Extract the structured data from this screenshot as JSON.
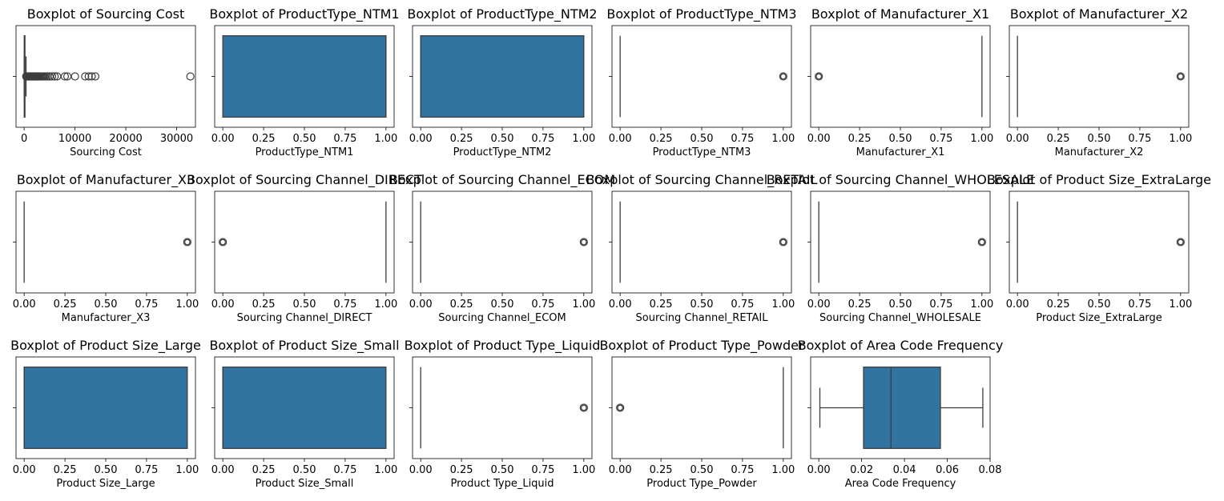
{
  "chart_data": [
    {
      "type": "boxplot",
      "title": "Boxplot of Sourcing Cost",
      "xlabel": "Sourcing Cost",
      "xlim": [
        -1600,
        33700
      ],
      "xticks": [
        0,
        10000,
        20000,
        30000
      ],
      "xtick_labels": [
        "0",
        "10000",
        "20000",
        "30000"
      ],
      "box": {
        "q1": 20,
        "median": 60,
        "q3": 160,
        "whisker_low": 0,
        "whisker_high": 370
      },
      "box_color": "",
      "outliers": [
        400,
        500,
        600,
        700,
        800,
        900,
        1000,
        1100,
        1200,
        1300,
        1400,
        1500,
        1600,
        1700,
        1800,
        1900,
        2000,
        2100,
        2200,
        2300,
        2400,
        2500,
        2600,
        2700,
        2800,
        2900,
        3000,
        3200,
        3400,
        3600,
        3800,
        4000,
        4300,
        4600,
        5000,
        5500,
        6000,
        6500,
        8000,
        8500,
        10000,
        12000,
        12700,
        13300,
        14000,
        32700
      ]
    },
    {
      "type": "boxplot",
      "title": "Boxplot of ProductType_NTM1",
      "xlabel": "ProductType_NTM1",
      "xlim": [
        -0.05,
        1.05
      ],
      "xticks": [
        0,
        0.25,
        0.5,
        0.75,
        1
      ],
      "xtick_labels": [
        "0.00",
        "0.25",
        "0.50",
        "0.75",
        "1.00"
      ],
      "box": {
        "q1": 0,
        "median": 1,
        "q3": 1,
        "whisker_low": 0,
        "whisker_high": 1
      },
      "box_color": "#3274a1",
      "outliers": []
    },
    {
      "type": "boxplot",
      "title": "Boxplot of ProductType_NTM2",
      "xlabel": "ProductType_NTM2",
      "xlim": [
        -0.05,
        1.05
      ],
      "xticks": [
        0,
        0.25,
        0.5,
        0.75,
        1
      ],
      "xtick_labels": [
        "0.00",
        "0.25",
        "0.50",
        "0.75",
        "1.00"
      ],
      "box": {
        "q1": 0,
        "median": 0,
        "q3": 1,
        "whisker_low": 0,
        "whisker_high": 1
      },
      "box_color": "#3274a1",
      "outliers": []
    },
    {
      "type": "boxplot",
      "title": "Boxplot of ProductType_NTM3",
      "xlabel": "ProductType_NTM3",
      "xlim": [
        -0.05,
        1.05
      ],
      "xticks": [
        0,
        0.25,
        0.5,
        0.75,
        1
      ],
      "xtick_labels": [
        "0.00",
        "0.25",
        "0.50",
        "0.75",
        "1.00"
      ],
      "box": {
        "q1": 0,
        "median": 0,
        "q3": 0,
        "whisker_low": 0,
        "whisker_high": 0
      },
      "box_color": "#3274a1",
      "outliers": [
        1
      ]
    },
    {
      "type": "boxplot",
      "title": "Boxplot of Manufacturer_X1",
      "xlabel": "Manufacturer_X1",
      "xlim": [
        -0.05,
        1.05
      ],
      "xticks": [
        0,
        0.25,
        0.5,
        0.75,
        1
      ],
      "xtick_labels": [
        "0.00",
        "0.25",
        "0.50",
        "0.75",
        "1.00"
      ],
      "box": {
        "q1": 1,
        "median": 1,
        "q3": 1,
        "whisker_low": 1,
        "whisker_high": 1
      },
      "box_color": "#3274a1",
      "outliers": [
        0
      ]
    },
    {
      "type": "boxplot",
      "title": "Boxplot of Manufacturer_X2",
      "xlabel": "Manufacturer_X2",
      "xlim": [
        -0.05,
        1.05
      ],
      "xticks": [
        0,
        0.25,
        0.5,
        0.75,
        1
      ],
      "xtick_labels": [
        "0.00",
        "0.25",
        "0.50",
        "0.75",
        "1.00"
      ],
      "box": {
        "q1": 0,
        "median": 0,
        "q3": 0,
        "whisker_low": 0,
        "whisker_high": 0
      },
      "box_color": "#3274a1",
      "outliers": [
        1
      ]
    },
    {
      "type": "boxplot",
      "title": "Boxplot of Manufacturer_X3",
      "xlabel": "Manufacturer_X3",
      "xlim": [
        -0.05,
        1.05
      ],
      "xticks": [
        0,
        0.25,
        0.5,
        0.75,
        1
      ],
      "xtick_labels": [
        "0.00",
        "0.25",
        "0.50",
        "0.75",
        "1.00"
      ],
      "box": {
        "q1": 0,
        "median": 0,
        "q3": 0,
        "whisker_low": 0,
        "whisker_high": 0
      },
      "box_color": "#3274a1",
      "outliers": [
        1
      ]
    },
    {
      "type": "boxplot",
      "title": "Boxplot of Sourcing Channel_DIRECT",
      "xlabel": "Sourcing Channel_DIRECT",
      "xlim": [
        -0.05,
        1.05
      ],
      "xticks": [
        0,
        0.25,
        0.5,
        0.75,
        1
      ],
      "xtick_labels": [
        "0.00",
        "0.25",
        "0.50",
        "0.75",
        "1.00"
      ],
      "box": {
        "q1": 1,
        "median": 1,
        "q3": 1,
        "whisker_low": 1,
        "whisker_high": 1
      },
      "box_color": "#3274a1",
      "outliers": [
        0
      ]
    },
    {
      "type": "boxplot",
      "title": "Boxplot of Sourcing Channel_ECOM",
      "xlabel": "Sourcing Channel_ECOM",
      "xlim": [
        -0.05,
        1.05
      ],
      "xticks": [
        0,
        0.25,
        0.5,
        0.75,
        1
      ],
      "xtick_labels": [
        "0.00",
        "0.25",
        "0.50",
        "0.75",
        "1.00"
      ],
      "box": {
        "q1": 0,
        "median": 0,
        "q3": 0,
        "whisker_low": 0,
        "whisker_high": 0
      },
      "box_color": "#3274a1",
      "outliers": [
        1
      ]
    },
    {
      "type": "boxplot",
      "title": "Boxplot of Sourcing Channel_RETAIL",
      "xlabel": "Sourcing Channel_RETAIL",
      "xlim": [
        -0.05,
        1.05
      ],
      "xticks": [
        0,
        0.25,
        0.5,
        0.75,
        1
      ],
      "xtick_labels": [
        "0.00",
        "0.25",
        "0.50",
        "0.75",
        "1.00"
      ],
      "box": {
        "q1": 0,
        "median": 0,
        "q3": 0,
        "whisker_low": 0,
        "whisker_high": 0
      },
      "box_color": "#3274a1",
      "outliers": [
        1
      ]
    },
    {
      "type": "boxplot",
      "title": "Boxplot of Sourcing Channel_WHOLESALE",
      "xlabel": "Sourcing Channel_WHOLESALE",
      "xlim": [
        -0.05,
        1.05
      ],
      "xticks": [
        0,
        0.25,
        0.5,
        0.75,
        1
      ],
      "xtick_labels": [
        "0.00",
        "0.25",
        "0.50",
        "0.75",
        "1.00"
      ],
      "box": {
        "q1": 0,
        "median": 0,
        "q3": 0,
        "whisker_low": 0,
        "whisker_high": 0
      },
      "box_color": "#3274a1",
      "outliers": [
        1
      ]
    },
    {
      "type": "boxplot",
      "title": "Boxplot of Product Size_ExtraLarge",
      "xlabel": "Product Size_ExtraLarge",
      "xlim": [
        -0.05,
        1.05
      ],
      "xticks": [
        0,
        0.25,
        0.5,
        0.75,
        1
      ],
      "xtick_labels": [
        "0.00",
        "0.25",
        "0.50",
        "0.75",
        "1.00"
      ],
      "box": {
        "q1": 0,
        "median": 0,
        "q3": 0,
        "whisker_low": 0,
        "whisker_high": 0
      },
      "box_color": "#3274a1",
      "outliers": [
        1
      ]
    },
    {
      "type": "boxplot",
      "title": "Boxplot of Product Size_Large",
      "xlabel": "Product Size_Large",
      "xlim": [
        -0.05,
        1.05
      ],
      "xticks": [
        0,
        0.25,
        0.5,
        0.75,
        1
      ],
      "xtick_labels": [
        "0.00",
        "0.25",
        "0.50",
        "0.75",
        "1.00"
      ],
      "box": {
        "q1": 0,
        "median": 0,
        "q3": 1,
        "whisker_low": 0,
        "whisker_high": 1
      },
      "box_color": "#3274a1",
      "outliers": []
    },
    {
      "type": "boxplot",
      "title": "Boxplot of Product Size_Small",
      "xlabel": "Product Size_Small",
      "xlim": [
        -0.05,
        1.05
      ],
      "xticks": [
        0,
        0.25,
        0.5,
        0.75,
        1
      ],
      "xtick_labels": [
        "0.00",
        "0.25",
        "0.50",
        "0.75",
        "1.00"
      ],
      "box": {
        "q1": 0,
        "median": 0,
        "q3": 1,
        "whisker_low": 0,
        "whisker_high": 1
      },
      "box_color": "#3274a1",
      "outliers": []
    },
    {
      "type": "boxplot",
      "title": "Boxplot of Product Type_Liquid",
      "xlabel": "Product Type_Liquid",
      "xlim": [
        -0.05,
        1.05
      ],
      "xticks": [
        0,
        0.25,
        0.5,
        0.75,
        1
      ],
      "xtick_labels": [
        "0.00",
        "0.25",
        "0.50",
        "0.75",
        "1.00"
      ],
      "box": {
        "q1": 0,
        "median": 0,
        "q3": 0,
        "whisker_low": 0,
        "whisker_high": 0
      },
      "box_color": "#3274a1",
      "outliers": [
        1
      ]
    },
    {
      "type": "boxplot",
      "title": "Boxplot of Product Type_Powder",
      "xlabel": "Product Type_Powder",
      "xlim": [
        -0.05,
        1.05
      ],
      "xticks": [
        0,
        0.25,
        0.5,
        0.75,
        1
      ],
      "xtick_labels": [
        "0.00",
        "0.25",
        "0.50",
        "0.75",
        "1.00"
      ],
      "box": {
        "q1": 1,
        "median": 1,
        "q3": 1,
        "whisker_low": 1,
        "whisker_high": 1
      },
      "box_color": "#3274a1",
      "outliers": [
        0
      ]
    },
    {
      "type": "boxplot",
      "title": "Boxplot of Area Code Frequency",
      "xlabel": "Area Code Frequency",
      "xlim": [
        -0.0038,
        0.08
      ],
      "xticks": [
        0,
        0.02,
        0.04,
        0.06,
        0.08
      ],
      "xtick_labels": [
        "0.00",
        "0.02",
        "0.04",
        "0.06",
        "0.08"
      ],
      "box": {
        "q1": 0.0209,
        "median": 0.0337,
        "q3": 0.0568,
        "whisker_low": 0.0005,
        "whisker_high": 0.0766
      },
      "box_color": "#3274a1",
      "outliers": []
    }
  ]
}
